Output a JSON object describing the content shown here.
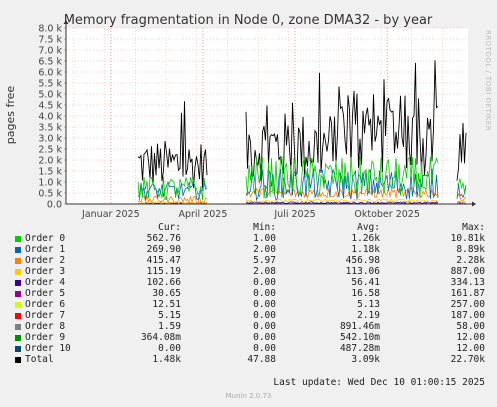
{
  "chart_data": {
    "type": "line",
    "title": "Memory fragmentation in Node 0, zone DMA32 - by year",
    "ylabel": "pages free",
    "ylim": [
      0,
      8000
    ],
    "yticks": [
      "0.0",
      "0.5 k",
      "1.0 k",
      "1.5 k",
      "2.0 k",
      "2.5 k",
      "3.0 k",
      "3.5 k",
      "4.0 k",
      "4.5 k",
      "5.0 k",
      "5.5 k",
      "6.0 k",
      "6.5 k",
      "7.0 k",
      "7.5 k",
      "8.0 k"
    ],
    "xticks": [
      "Januar 2025",
      "April 2025",
      "Juli 2025",
      "Oktober 2025"
    ],
    "grid": true,
    "series": [
      {
        "name": "Order 0",
        "color": "#00cc00",
        "cur": "562.76",
        "min": "1.00",
        "avg": "1.26k",
        "max": "10.81k"
      },
      {
        "name": "Order 1",
        "color": "#0066b3",
        "cur": "269.90",
        "min": "2.00",
        "avg": "1.18k",
        "max": "8.89k"
      },
      {
        "name": "Order 2",
        "color": "#ff8000",
        "cur": "415.47",
        "min": "5.97",
        "avg": "456.98",
        "max": "2.28k"
      },
      {
        "name": "Order 3",
        "color": "#ffcc00",
        "cur": "115.19",
        "min": "2.08",
        "avg": "113.06",
        "max": "887.00"
      },
      {
        "name": "Order 4",
        "color": "#330099",
        "cur": "102.66",
        "min": "0.00",
        "avg": "56.41",
        "max": "334.13"
      },
      {
        "name": "Order 5",
        "color": "#990099",
        "cur": "30.65",
        "min": "0.00",
        "avg": "16.58",
        "max": "161.87"
      },
      {
        "name": "Order 6",
        "color": "#ccff00",
        "cur": "12.51",
        "min": "0.00",
        "avg": "5.13",
        "max": "257.00"
      },
      {
        "name": "Order 7",
        "color": "#ff0000",
        "cur": "5.15",
        "min": "0.00",
        "avg": "2.19",
        "max": "187.00"
      },
      {
        "name": "Order 8",
        "color": "#808080",
        "cur": "1.59",
        "min": "0.00",
        "avg": "891.46m",
        "max": "58.00"
      },
      {
        "name": "Order 9",
        "color": "#008f00",
        "cur": "364.08m",
        "min": "0.00",
        "avg": "542.10m",
        "max": "12.00"
      },
      {
        "name": "Order 10",
        "color": "#00487d",
        "cur": "0.00",
        "min": "0.00",
        "avg": "487.28m",
        "max": "12.00"
      },
      {
        "name": "Total",
        "color": "#000000",
        "cur": "1.48k",
        "min": "47.88",
        "avg": "3.09k",
        "max": "22.70k"
      }
    ]
  },
  "legend_headers": {
    "cur": "Cur:",
    "min": "Min:",
    "avg": "Avg:",
    "max": "Max:"
  },
  "last_update": "Last update: Wed Dec 10 01:00:15 2025",
  "watermark": "RRDTOOL / TOBI OETIKER",
  "footer": "Munin 2.0.73"
}
